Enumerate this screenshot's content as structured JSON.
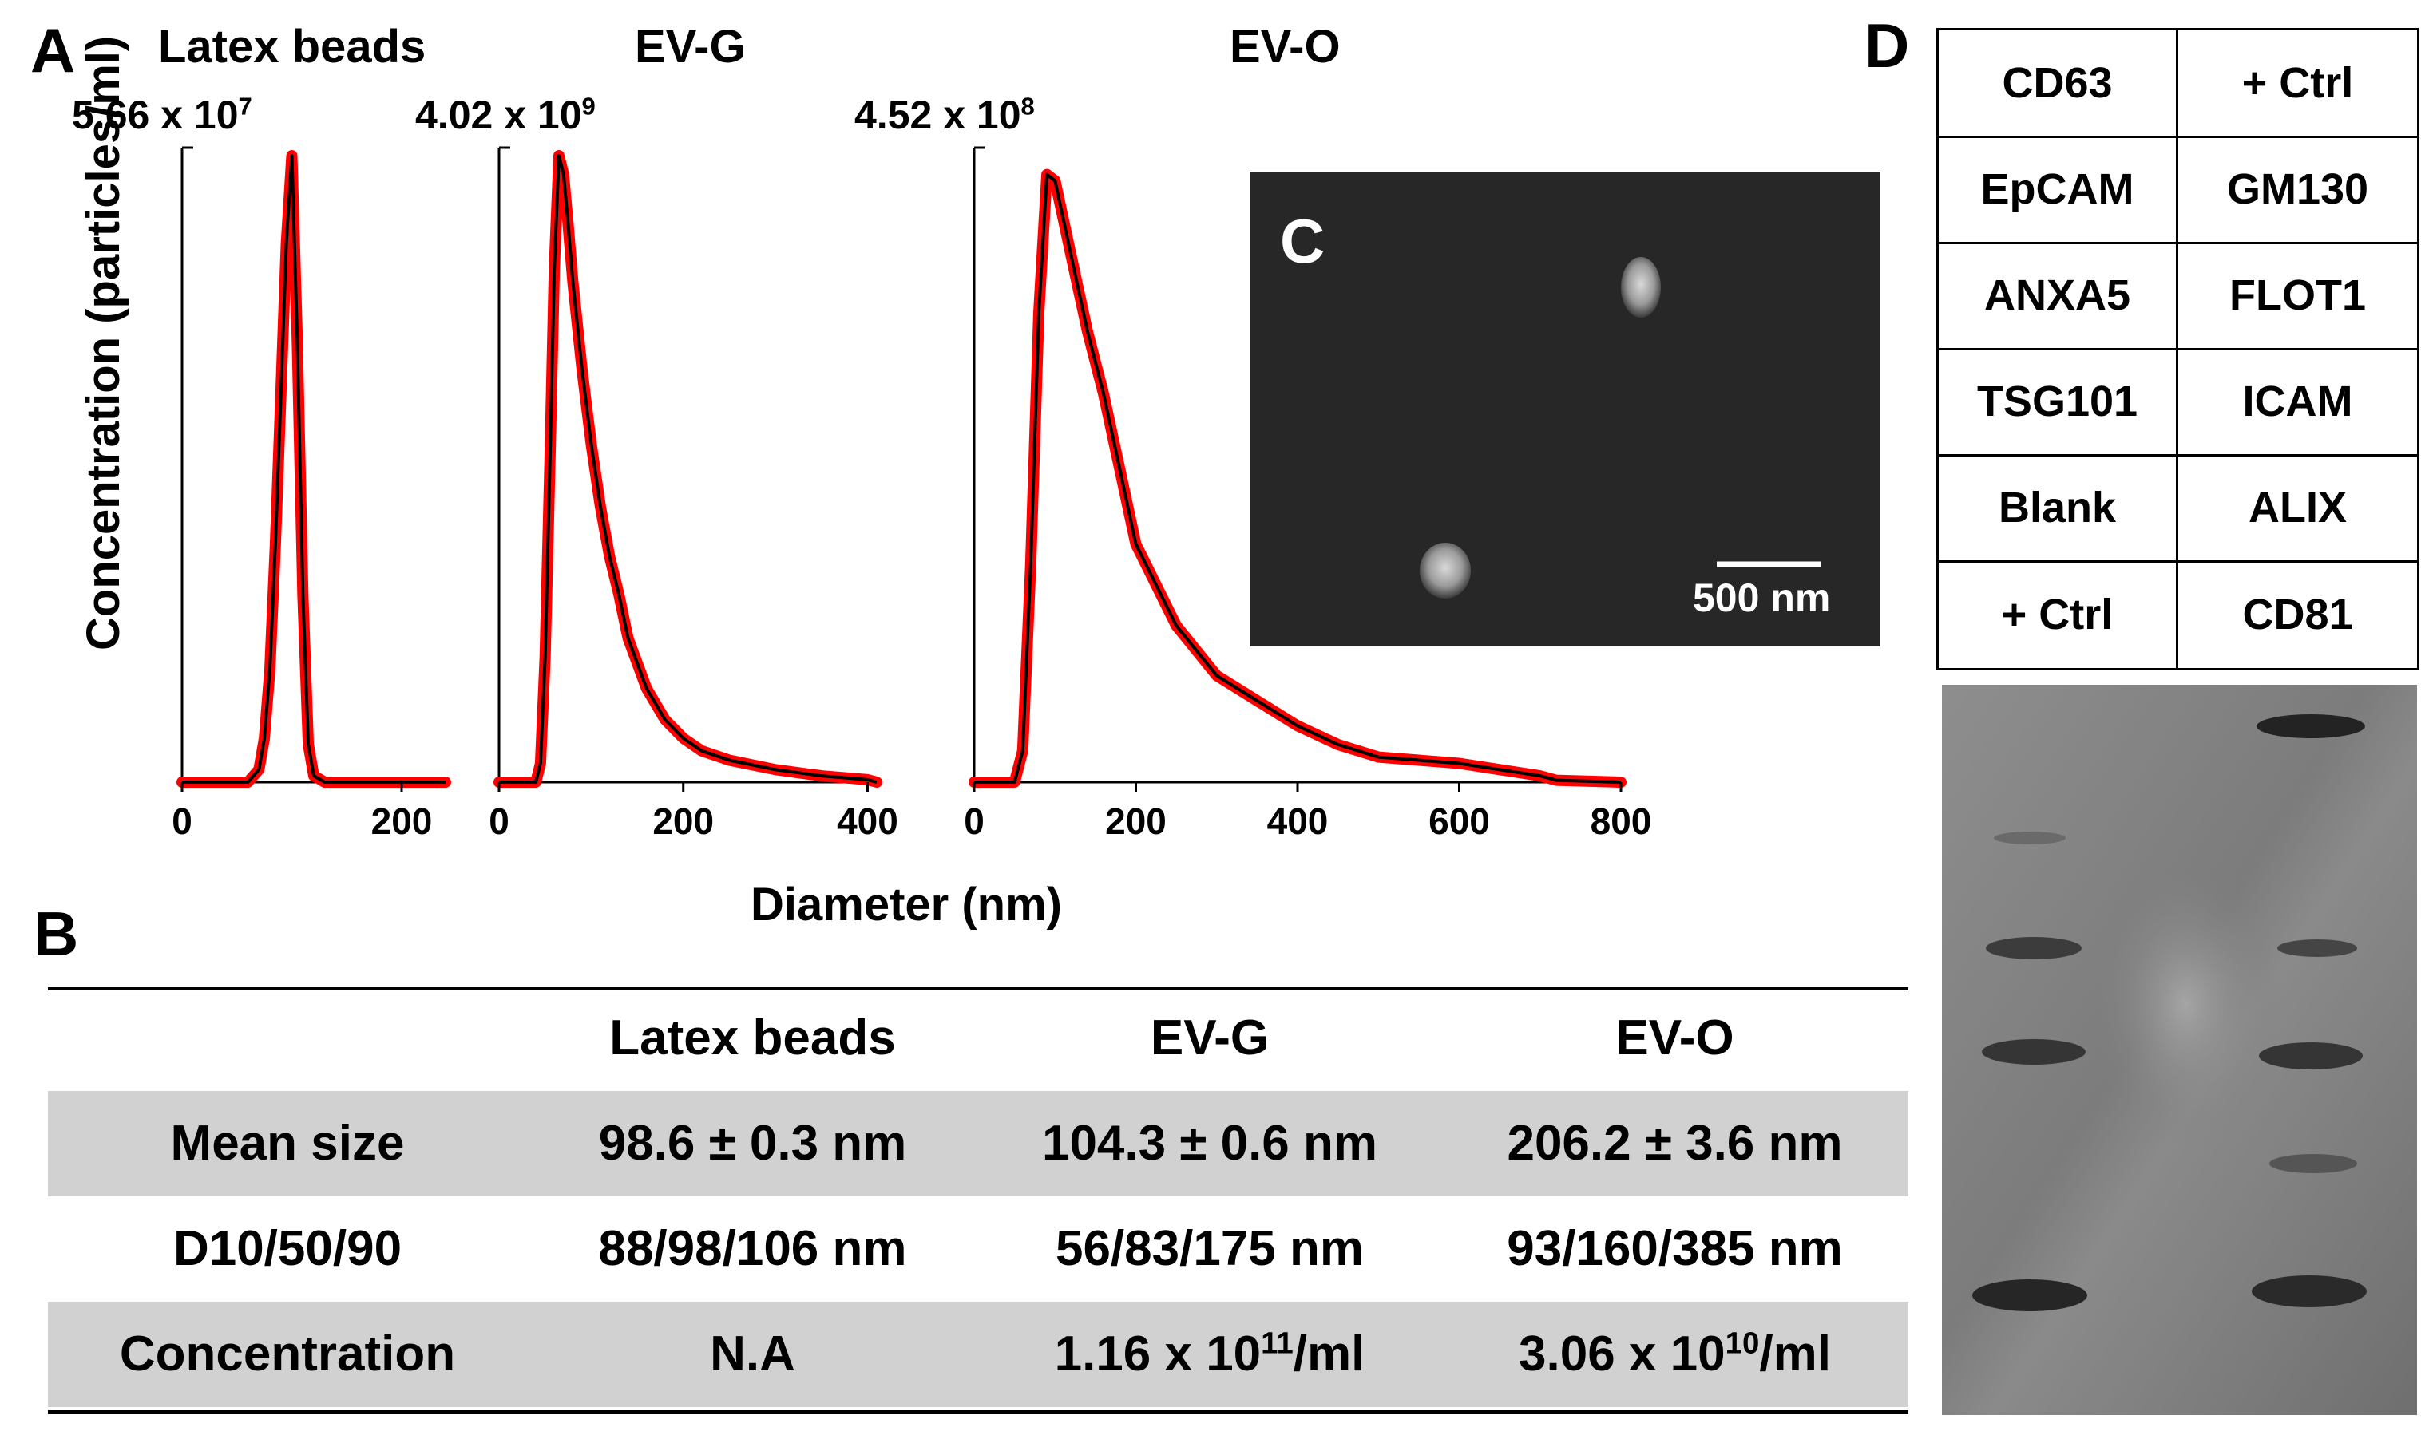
{
  "panels": {
    "a": "A",
    "b": "B",
    "c": "C",
    "d": "D"
  },
  "chart_data": [
    {
      "type": "line",
      "title": "Latex beads",
      "peak_label": "5.66 x 10",
      "peak_exp": "7",
      "xlim": [
        0,
        240
      ],
      "x_ticks": [
        "0",
        "200"
      ],
      "ylabel": "Concentration (particles/ml)",
      "x": [
        0,
        60,
        70,
        75,
        80,
        85,
        90,
        95,
        100,
        105,
        110,
        115,
        120,
        130,
        240
      ],
      "y": [
        0,
        0,
        0.02,
        0.07,
        0.18,
        0.38,
        0.62,
        0.86,
        1.0,
        0.7,
        0.3,
        0.06,
        0.01,
        0,
        0
      ],
      "series": [
        {
          "name": "mean",
          "color": "#000000"
        },
        {
          "name": "error band",
          "color": "#ff0000"
        }
      ]
    },
    {
      "type": "line",
      "title": "EV-G",
      "peak_label": "4.02 x 10",
      "peak_exp": "9",
      "xlim": [
        0,
        410
      ],
      "x_ticks": [
        "0",
        "200",
        "400"
      ],
      "x": [
        0,
        40,
        45,
        50,
        55,
        60,
        65,
        70,
        75,
        80,
        90,
        100,
        110,
        120,
        130,
        140,
        160,
        180,
        200,
        220,
        250,
        300,
        350,
        400,
        410
      ],
      "y": [
        0,
        0,
        0.03,
        0.2,
        0.5,
        0.82,
        1.0,
        0.97,
        0.89,
        0.8,
        0.66,
        0.54,
        0.44,
        0.36,
        0.3,
        0.23,
        0.15,
        0.1,
        0.07,
        0.05,
        0.035,
        0.02,
        0.01,
        0.004,
        0
      ],
      "series": [
        {
          "name": "mean",
          "color": "#000000"
        },
        {
          "name": "error band",
          "color": "#ff0000"
        }
      ]
    },
    {
      "type": "line",
      "title": "EV-O",
      "peak_label": "4.52 x 10",
      "peak_exp": "8",
      "xlim": [
        0,
        800
      ],
      "x_ticks": [
        "0",
        "200",
        "400",
        "600",
        "800"
      ],
      "xlabel": "Diameter (nm)",
      "x": [
        0,
        50,
        60,
        70,
        80,
        90,
        100,
        110,
        120,
        140,
        160,
        180,
        200,
        250,
        300,
        350,
        400,
        450,
        500,
        550,
        600,
        650,
        700,
        720,
        800
      ],
      "y": [
        0,
        0,
        0.05,
        0.35,
        0.75,
        0.97,
        0.96,
        0.9,
        0.84,
        0.72,
        0.62,
        0.5,
        0.38,
        0.25,
        0.17,
        0.13,
        0.09,
        0.06,
        0.04,
        0.035,
        0.03,
        0.02,
        0.01,
        0.003,
        0
      ],
      "series": [
        {
          "name": "mean",
          "color": "#000000"
        },
        {
          "name": "error band",
          "color": "#ff0000"
        }
      ]
    }
  ],
  "sem": {
    "scale_label": "500 nm"
  },
  "table": {
    "headers": [
      "",
      "Latex beads",
      "EV-G",
      "EV-O"
    ],
    "mean_size": {
      "label": "Mean size",
      "values": [
        "98.6 ± 0.3 nm",
        "104.3 ± 0.6 nm",
        "206.2 ± 3.6 nm"
      ]
    },
    "d_values": {
      "label": "D10/50/90",
      "values": [
        "88/98/106 nm",
        "56/83/175 nm",
        "93/160/385 nm"
      ]
    },
    "concentration": {
      "label": "Concentration",
      "latex": "N.A",
      "evg": {
        "base": "1.16 x 10",
        "exp": "11",
        "unit": "/ml"
      },
      "evo": {
        "base": "3.06 x 10",
        "exp": "10",
        "unit": "/ml"
      }
    }
  },
  "array": [
    [
      "CD63",
      "+ Ctrl"
    ],
    [
      "EpCAM",
      "GM130"
    ],
    [
      "ANXA5",
      "FLOT1"
    ],
    [
      "TSG101",
      "ICAM"
    ],
    [
      "Blank",
      "ALIX"
    ],
    [
      "+ Ctrl",
      "CD81"
    ]
  ],
  "colors": {
    "line": "#000000",
    "band": "#ff0000",
    "shade": "#d1d1d1"
  }
}
